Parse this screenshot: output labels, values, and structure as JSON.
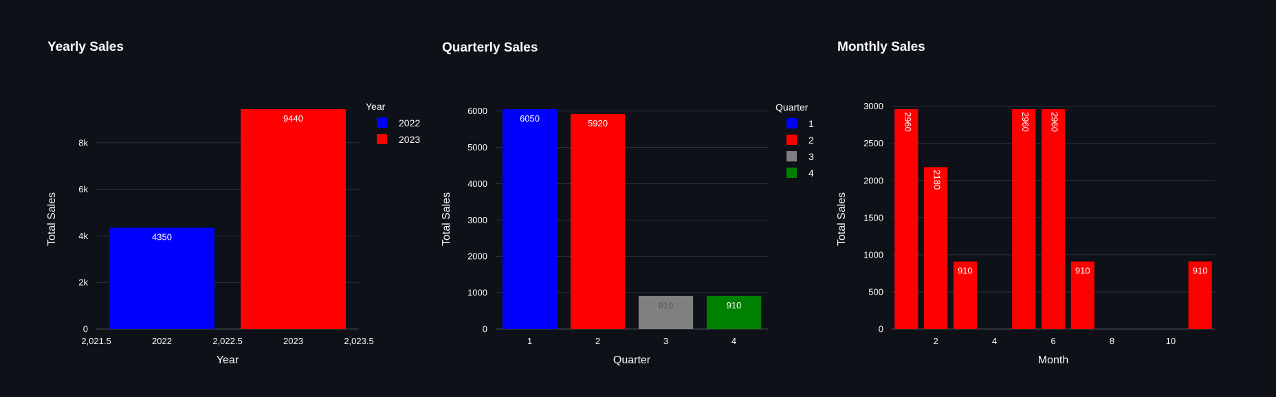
{
  "chart_data": [
    {
      "type": "bar",
      "title": "Yearly Sales",
      "xlabel": "Year",
      "ylabel": "Total Sales",
      "x": [
        2022,
        2023
      ],
      "values": [
        4350,
        9440
      ],
      "colors": [
        "#0000ff",
        "#ff0000"
      ],
      "xlim": [
        2021.5,
        2023.5
      ],
      "xticks": [
        2021.5,
        2022,
        2022.5,
        2023,
        2023.5
      ],
      "xtick_labels": [
        "2,021.5",
        "2022",
        "2,022.5",
        "2023",
        "2,023.5"
      ],
      "ylim": [
        0,
        9440
      ],
      "yticks": [
        0,
        2000,
        4000,
        6000,
        8000
      ],
      "ytick_labels": [
        "0",
        "2k",
        "4k",
        "6k",
        "8k"
      ],
      "bar_width": 0.8,
      "legend": {
        "title": "Year",
        "items": [
          {
            "label": "2022",
            "color": "#0000ff"
          },
          {
            "label": "2023",
            "color": "#ff0000"
          }
        ],
        "placement": "top-right"
      },
      "grid": true
    },
    {
      "type": "bar",
      "title": "Quarterly Sales",
      "xlabel": "Quarter",
      "ylabel": "Total Sales",
      "x": [
        1,
        2,
        3,
        4
      ],
      "values": [
        6050,
        5920,
        910,
        910
      ],
      "colors": [
        "#0000ff",
        "#ff0000",
        "#808080",
        "#008000"
      ],
      "label_colors": [
        "#ffffff",
        "#ffffff",
        "#555555",
        "#ffffff"
      ],
      "xlim": [
        0.5,
        4.5
      ],
      "xticks": [
        1,
        2,
        3,
        4
      ],
      "xtick_labels": [
        "1",
        "2",
        "3",
        "4"
      ],
      "ylim": [
        0,
        6050
      ],
      "yticks": [
        0,
        1000,
        2000,
        3000,
        4000,
        5000,
        6000
      ],
      "ytick_labels": [
        "0",
        "1000",
        "2000",
        "3000",
        "4000",
        "5000",
        "6000"
      ],
      "bar_width": 0.8,
      "legend": {
        "title": "Quarter",
        "items": [
          {
            "label": "1",
            "color": "#0000ff"
          },
          {
            "label": "2",
            "color": "#ff0000"
          },
          {
            "label": "3",
            "color": "#808080"
          },
          {
            "label": "4",
            "color": "#008000"
          }
        ],
        "placement": "top-right"
      },
      "grid": true
    },
    {
      "type": "bar",
      "title": "Monthly Sales",
      "xlabel": "Month",
      "ylabel": "Total Sales",
      "x": [
        1,
        2,
        3,
        5,
        6,
        7,
        11
      ],
      "values": [
        2960,
        2180,
        910,
        2960,
        2960,
        910,
        910
      ],
      "colors": [
        "#ff0000",
        "#ff0000",
        "#ff0000",
        "#ff0000",
        "#ff0000",
        "#ff0000",
        "#ff0000"
      ],
      "xlim": [
        0.5,
        11.5
      ],
      "xticks": [
        2,
        4,
        6,
        8,
        10
      ],
      "xtick_labels": [
        "2",
        "4",
        "6",
        "8",
        "10"
      ],
      "ylim": [
        0,
        2960
      ],
      "yticks": [
        0,
        500,
        1000,
        1500,
        2000,
        2500,
        3000
      ],
      "ytick_labels": [
        "0",
        "500",
        "1000",
        "1500",
        "2000",
        "2500",
        "3000"
      ],
      "bar_width": 0.8,
      "grid": true
    }
  ]
}
